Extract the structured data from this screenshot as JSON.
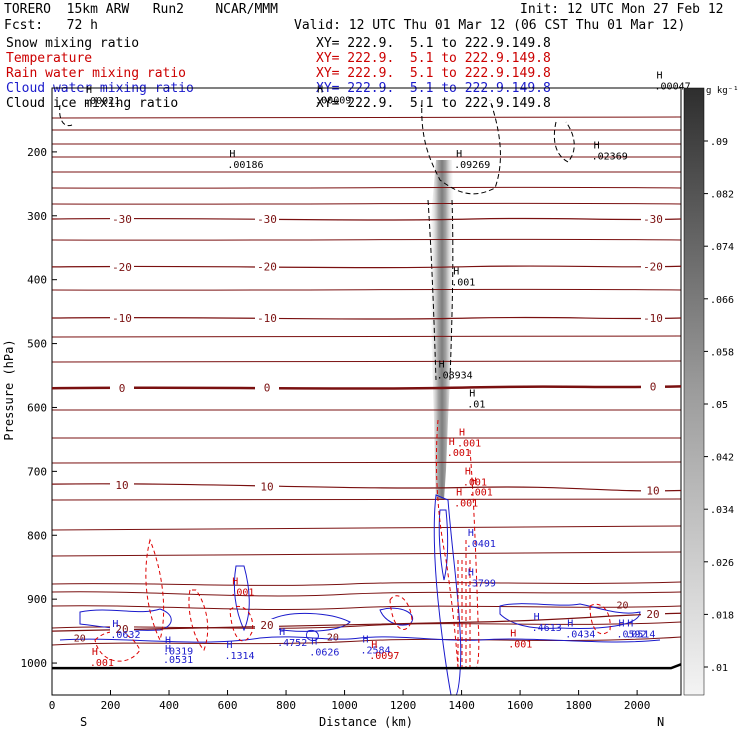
{
  "header": {
    "model": "TORERO  15km ARW   Run2    NCAR/MMM",
    "init": "Init: 12 UTC Mon 27 Feb 12",
    "fcst": "Fcst:   72 h",
    "valid": "Valid: 12 UTC Thu 01 Mar 12 (06 CST Thu 01 Mar 12)"
  },
  "fields": [
    {
      "name": "Snow mixing ratio",
      "color": "#000000",
      "xy": "XY= 222.9.  5.1 to 222.9.149.8"
    },
    {
      "name": "Temperature",
      "color": "#cc0000",
      "xy": "XY= 222.9.  5.1 to 222.9.149.8"
    },
    {
      "name": "Rain water mixing ratio",
      "color": "#cc0000",
      "xy": "XY= 222.9.  5.1 to 222.9.149.8"
    },
    {
      "name": "Cloud water mixing ratio",
      "color": "#1a1acc",
      "xy": "XY= 222.9.  5.1 to 222.9.149.8"
    },
    {
      "name": "Cloud ice mixing ratio",
      "color": "#000000",
      "xy": "XY= 222.9.  5.1 to 222.9.149.8"
    }
  ],
  "chart_data": {
    "type": "heatmap",
    "xlabel": "Distance (km)",
    "ylabel": "Pressure (hPa)",
    "xlim": [
      0,
      2150
    ],
    "ylim": [
      1050,
      100
    ],
    "x_ticks": [
      0,
      200,
      400,
      600,
      800,
      1000,
      1200,
      1400,
      1600,
      1800,
      2000
    ],
    "y_ticks": [
      200,
      300,
      400,
      500,
      600,
      700,
      800,
      900,
      1000
    ],
    "left_end": "S",
    "right_end": "N",
    "colorbar": {
      "unit": "g kg⁻¹",
      "ticks": [
        ".01",
        ".018",
        ".026",
        ".034",
        ".042",
        ".05",
        ".058",
        ".066",
        ".074",
        ".082",
        ".09"
      ]
    },
    "temperature_isotherms": [
      {
        "label": "-30",
        "left_p": 305,
        "right_p": 305
      },
      {
        "label": "-20",
        "left_p": 380,
        "right_p": 379
      },
      {
        "label": "-10",
        "left_p": 460,
        "right_p": 460
      },
      {
        "label": "0",
        "left_p": 570,
        "right_p": 567
      },
      {
        "label": "10",
        "left_p": 720,
        "right_p": 730
      },
      {
        "label": "20",
        "left_p": 950,
        "right_p": 922
      }
    ],
    "annotations": [
      {
        "text": ".00021",
        "x": 130,
        "p": 125
      },
      {
        "text": ".00009",
        "x": 920,
        "p": 124
      },
      {
        "text": ".00186",
        "x": 620,
        "p": 225
      },
      {
        "text": ".09269",
        "x": 1395,
        "p": 225
      },
      {
        "text": ".02369",
        "x": 1865,
        "p": 212
      },
      {
        "text": ".00047",
        "x": 2080,
        "p": 102
      },
      {
        "text": ".08934",
        "x": 1335,
        "p": 555
      },
      {
        "text": ".001",
        "x": 1385,
        "p": 409
      },
      {
        "text": ".001",
        "x": 1370,
        "p": 676
      },
      {
        "text": ".001",
        "x": 1405,
        "p": 661
      },
      {
        "text": ".001",
        "x": 1425,
        "p": 722
      },
      {
        "text": ".001",
        "x": 1445,
        "p": 738
      },
      {
        "text": ".001",
        "x": 1395,
        "p": 755
      },
      {
        "text": ".001",
        "x": 630,
        "p": 894
      },
      {
        "text": ".001",
        "x": 1580,
        "p": 976
      },
      {
        "text": ".001",
        "x": 150,
        "p": 1005
      },
      {
        "text": ".0632",
        "x": 220,
        "p": 961
      },
      {
        "text": ".0319",
        "x": 400,
        "p": 987
      },
      {
        "text": ".0531",
        "x": 400,
        "p": 1000
      },
      {
        "text": ".1314",
        "x": 610,
        "p": 994
      },
      {
        "text": ".4752",
        "x": 790,
        "p": 973
      },
      {
        "text": ".0626",
        "x": 900,
        "p": 988
      },
      {
        "text": ".2584",
        "x": 1075,
        "p": 985
      },
      {
        "text": ".0097",
        "x": 1105,
        "p": 994
      },
      {
        "text": ".3799",
        "x": 1435,
        "p": 880
      },
      {
        "text": ".4613",
        "x": 1660,
        "p": 950
      },
      {
        "text": ".0434",
        "x": 1775,
        "p": 960
      },
      {
        "text": ".0592",
        "x": 1950,
        "p": 960
      },
      {
        "text": ".0514",
        "x": 1980,
        "p": 960
      },
      {
        "text": ".0401",
        "x": 1435,
        "p": 818
      },
      {
        "text": ".01",
        "x": 1440,
        "p": 600
      },
      {
        "text": "20",
        "x": 1950,
        "p": 915
      },
      {
        "text": "20",
        "x": 960,
        "p": 965
      },
      {
        "text": "20",
        "x": 95,
        "p": 966
      }
    ]
  }
}
